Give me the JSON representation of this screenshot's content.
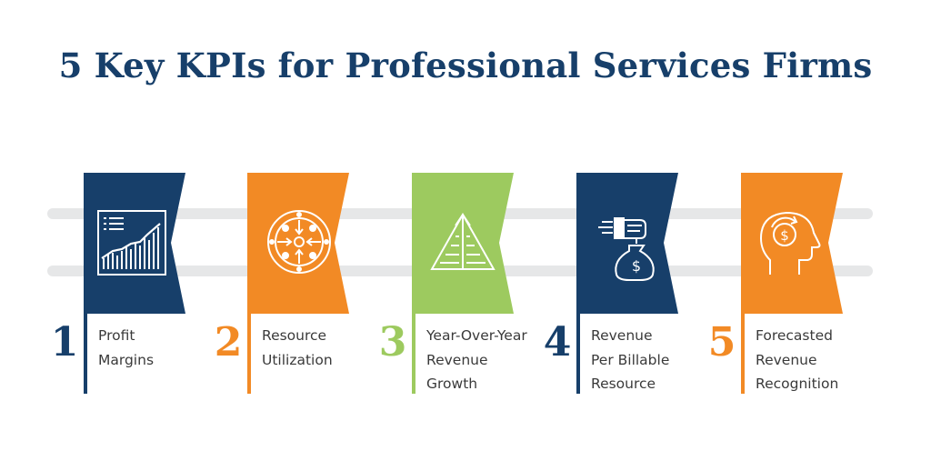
{
  "title": "5 Key KPIs for Professional Services Firms",
  "colors": {
    "navy": "#173f6a",
    "orange": "#f28a25",
    "green": "#9dca5f",
    "rail": "#e6e7e8",
    "label": "#3a3a3a"
  },
  "kpis": [
    {
      "number": "1",
      "lines": [
        "Profit",
        "Margins"
      ],
      "color": "#173f6a",
      "icon": "profit-chart-icon"
    },
    {
      "number": "2",
      "lines": [
        "Resource",
        "Utilization"
      ],
      "color": "#f28a25",
      "icon": "resource-target-icon"
    },
    {
      "number": "3",
      "lines": [
        "Year-Over-Year",
        "Revenue",
        "Growth"
      ],
      "color": "#9dca5f",
      "icon": "growth-pyramid-icon"
    },
    {
      "number": "4",
      "lines": [
        "Revenue",
        "Per Billable",
        "Resource"
      ],
      "color": "#173f6a",
      "icon": "money-bag-hand-icon"
    },
    {
      "number": "5",
      "lines": [
        "Forecasted",
        "Revenue",
        "Recognition"
      ],
      "color": "#f28a25",
      "icon": "head-dollar-icon"
    }
  ]
}
